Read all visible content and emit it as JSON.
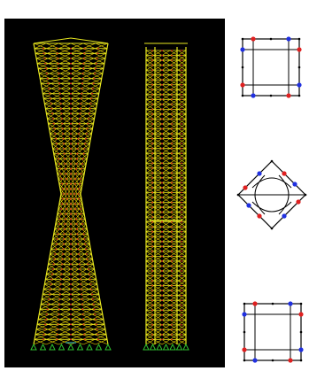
{
  "figure": {
    "viewport_background": "#000000",
    "page_background": "#ffffff",
    "colors": {
      "frame": "#e8e820",
      "brace": "#f0d800",
      "node": "#d82020",
      "node_dense": "#c81818",
      "support": "#30c030",
      "core": "#40d0d0",
      "plan_line": "#000000",
      "plan_node_red": "#e02020",
      "plan_node_blue": "#2030e0"
    },
    "left_tower": {
      "description_icon": "twisted-tower-model",
      "floors": 60
    },
    "right_tower": {
      "description_icon": "straight-tower-model",
      "floors": 60
    },
    "plans": [
      {
        "icon": "square-floor-plan-icon",
        "red_nodes": 4,
        "blue_nodes": 4
      },
      {
        "icon": "rotated-floor-plan-icon",
        "red_nodes": 4,
        "blue_nodes": 4
      },
      {
        "icon": "square-floor-plan-icon",
        "red_nodes": 4,
        "blue_nodes": 4
      }
    ]
  }
}
